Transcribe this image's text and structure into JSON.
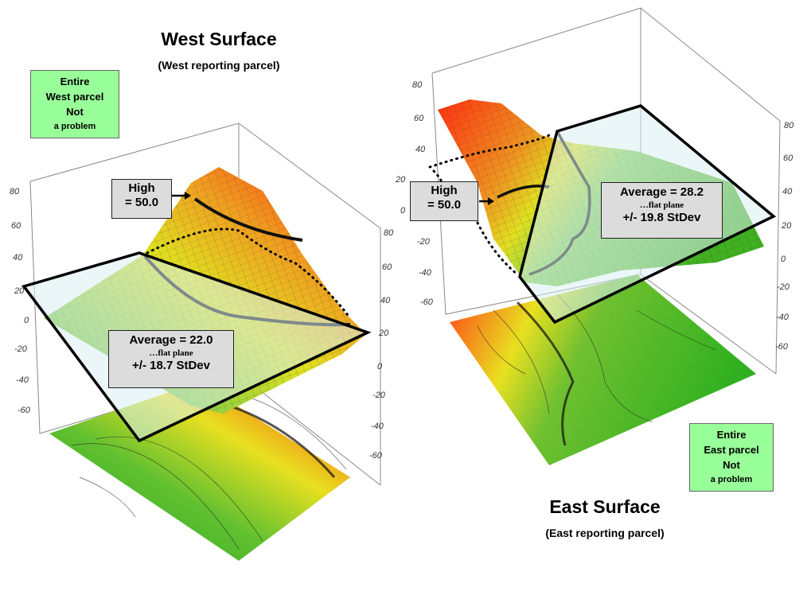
{
  "west": {
    "title": "West Surface",
    "subtitle": "(West reporting parcel)",
    "note": {
      "line1": "Entire",
      "line2": "West parcel",
      "line3": "Not",
      "line4": "a problem"
    },
    "high_box": {
      "line1": "High",
      "line2": "= 50.0"
    },
    "avg_box": {
      "line1": "Average = 22.0",
      "line2": "…flat plane",
      "line3": "+/- 18.7 StDev"
    }
  },
  "east": {
    "title": "East Surface",
    "subtitle": "(East reporting parcel)",
    "note": {
      "line1": "Entire",
      "line2": "East parcel",
      "line3": "Not",
      "line4": "a problem"
    },
    "high_box": {
      "line1": "High",
      "line2": "= 50.0"
    },
    "avg_box": {
      "line1": "Average = 28.2",
      "line2": "…flat plane",
      "line3": "+/- 19.8 StDev"
    }
  },
  "colors": {
    "note_bg": "#99ff99",
    "box_bg": "#dcdcdc",
    "high": "#ff3010",
    "mid": "#e8e820",
    "low": "#30a020",
    "plane": "#d8eef0"
  },
  "chart_data": [
    {
      "type": "surface",
      "title": "West Surface",
      "z_ticks_left": [
        "80",
        "60",
        "40",
        "20",
        "0",
        "-20",
        "-40",
        "-60"
      ],
      "z_ticks_right": [
        "80",
        "60",
        "40",
        "20",
        "0",
        "-20",
        "-40",
        "-60"
      ],
      "zlim": [
        -60,
        80
      ],
      "high_contour": 50.0,
      "average_plane": 22.0,
      "stdev": 18.7
    },
    {
      "type": "surface",
      "title": "East Surface",
      "z_ticks_left": [
        "80",
        "60",
        "40",
        "20",
        "0",
        "-20",
        "-40",
        "-60"
      ],
      "z_ticks_right": [
        "80",
        "60",
        "40",
        "20",
        "0",
        "-20",
        "-40",
        "-60"
      ],
      "zlim": [
        -60,
        80
      ],
      "high_contour": 50.0,
      "average_plane": 28.2,
      "stdev": 19.8
    }
  ]
}
